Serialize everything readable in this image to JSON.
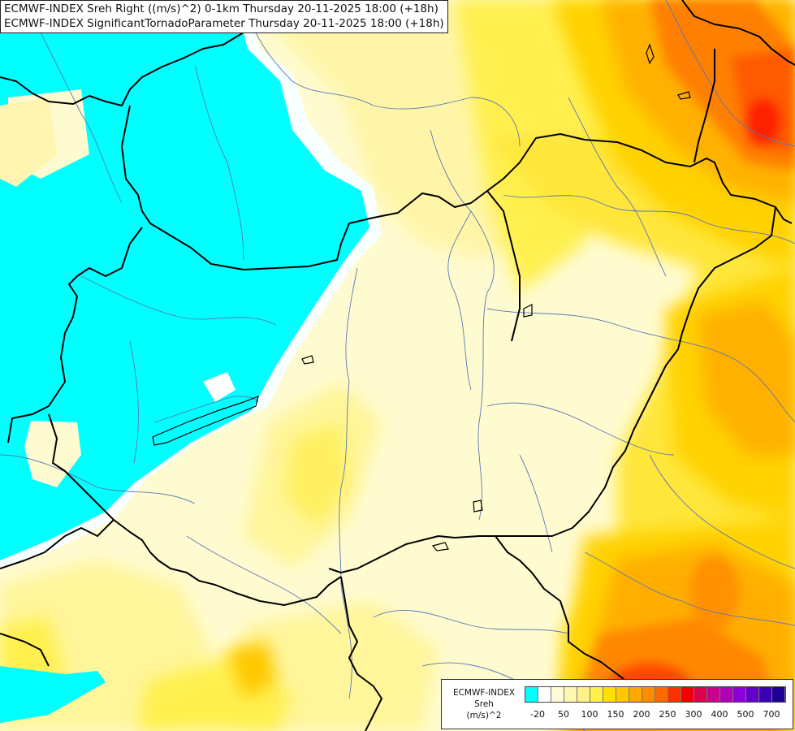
{
  "title": {
    "line1": "ECMWF-INDEX Sreh Right ((m/s)^2) 0-1km Thursday 20-11-2025 18:00 (+18h)",
    "line2": "ECMWF-INDEX SignificantTornadoParameter Thursday 20-11-2025 18:00 (+18h)"
  },
  "legend": {
    "title_line1": "ECMWF-INDEX",
    "title_line2": "Sreh",
    "title_line3": "(m/s)^2",
    "colors": [
      "#00ffff",
      "#ffffff",
      "#fffbd8",
      "#fff6b0",
      "#fff28a",
      "#fff04a",
      "#ffe000",
      "#ffc800",
      "#ffa800",
      "#ff8c00",
      "#ff6a00",
      "#ff3000",
      "#f00000",
      "#dc0050",
      "#c8008c",
      "#b400b4",
      "#8c00dc",
      "#6400c8",
      "#3c00b4",
      "#1e0096"
    ],
    "labels": [
      "-20",
      "50",
      "100",
      "150",
      "200",
      "250",
      "300",
      "400",
      "500",
      "700"
    ]
  },
  "colors": {
    "cyan": "#00ffff",
    "pale": "#fffbd0",
    "light_yellow": "#fff5a0",
    "yellow": "#ffee4a",
    "gold": "#ffd400",
    "orange": "#ffaa00",
    "dark_orange": "#ff7800",
    "red": "#ff3000",
    "border": "#000000",
    "river": "#5a78b4"
  }
}
